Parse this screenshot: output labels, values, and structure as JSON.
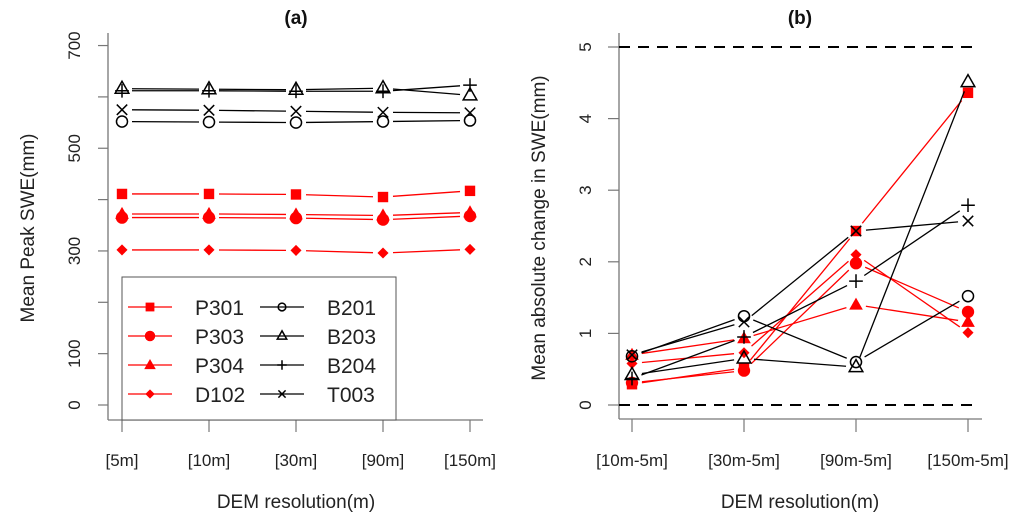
{
  "chart_data": [
    {
      "type": "line",
      "title": "(a)",
      "xlabel": "DEM resolution(m)",
      "ylabel": "Mean Peak SWE(mm)",
      "categories": [
        "[5m]",
        "[10m]",
        "[30m]",
        "[90m]",
        "[150m]"
      ],
      "ylim": [
        -50,
        740
      ],
      "yticks": [
        0,
        100,
        300,
        500,
        700
      ],
      "yticks_minor": [
        0,
        100,
        200,
        300,
        400,
        500,
        600,
        700
      ],
      "grid": false,
      "legend": {
        "placement": "bottom-left",
        "columns": 2,
        "entries": [
          "P301",
          "P303",
          "P304",
          "D102",
          "B201",
          "B203",
          "B204",
          "T003"
        ]
      },
      "series": [
        {
          "name": "P301",
          "color": "#ff0000",
          "marker": "filled-square",
          "values": [
            411,
            411,
            410,
            405,
            417
          ]
        },
        {
          "name": "P303",
          "color": "#ff0000",
          "marker": "filled-circle",
          "values": [
            365,
            365,
            364,
            361,
            368
          ]
        },
        {
          "name": "P304",
          "color": "#ff0000",
          "marker": "filled-triangle",
          "values": [
            372,
            372,
            371,
            369,
            375
          ]
        },
        {
          "name": "D102",
          "color": "#ff0000",
          "marker": "filled-diamond",
          "values": [
            302,
            302,
            301,
            296,
            303
          ]
        },
        {
          "name": "B201",
          "color": "#000000",
          "marker": "open-circle",
          "values": [
            552,
            551,
            550,
            552,
            554
          ]
        },
        {
          "name": "B203",
          "color": "#000000",
          "marker": "open-triangle",
          "values": [
            616,
            615,
            614,
            617,
            603
          ]
        },
        {
          "name": "B204",
          "color": "#000000",
          "marker": "plus",
          "values": [
            612,
            612,
            611,
            611,
            623
          ]
        },
        {
          "name": "T003",
          "color": "#000000",
          "marker": "cross",
          "values": [
            575,
            574,
            572,
            570,
            569
          ]
        }
      ]
    },
    {
      "type": "line",
      "title": "(b)",
      "xlabel": "DEM resolution(m)",
      "ylabel": "Mean absolute change in SWE(mm)",
      "categories": [
        "[10m-5m]",
        "[30m-5m]",
        "[90m-5m]",
        "[150m-5m]"
      ],
      "ylim": [
        -0.2,
        5.3
      ],
      "yticks": [
        0,
        1,
        2,
        3,
        4,
        5
      ],
      "reference_lines": [
        {
          "y": 0,
          "style": "dashed",
          "color": "#000000"
        },
        {
          "y": 5,
          "style": "dashed",
          "color": "#000000"
        }
      ],
      "grid": false,
      "series": [
        {
          "name": "P301",
          "color": "#ff0000",
          "marker": "filled-square",
          "values": [
            0.29,
            0.52,
            2.43,
            4.36
          ]
        },
        {
          "name": "P303",
          "color": "#ff0000",
          "marker": "filled-circle",
          "values": [
            0.31,
            0.48,
            1.98,
            1.3
          ]
        },
        {
          "name": "P304",
          "color": "#ff0000",
          "marker": "filled-triangle",
          "values": [
            0.7,
            0.93,
            1.4,
            1.16
          ]
        },
        {
          "name": "D102",
          "color": "#ff0000",
          "marker": "filled-diamond",
          "values": [
            0.58,
            0.73,
            2.1,
            1.01
          ]
        },
        {
          "name": "B201",
          "color": "#000000",
          "marker": "open-circle",
          "values": [
            0.68,
            1.24,
            0.6,
            1.52
          ]
        },
        {
          "name": "B203",
          "color": "#000000",
          "marker": "open-triangle",
          "values": [
            0.42,
            0.65,
            0.53,
            4.51
          ]
        },
        {
          "name": "B204",
          "color": "#000000",
          "marker": "plus",
          "values": [
            0.37,
            0.95,
            1.73,
            2.79
          ]
        },
        {
          "name": "T003",
          "color": "#000000",
          "marker": "cross",
          "values": [
            0.7,
            1.16,
            2.43,
            2.57
          ]
        }
      ]
    }
  ]
}
